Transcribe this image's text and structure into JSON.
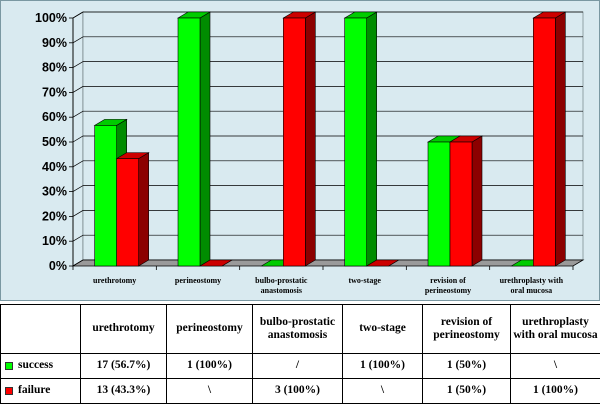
{
  "chart_data": {
    "type": "bar",
    "categories": [
      "urethrotomy",
      "perineostomy",
      "bulbo-prostatic anastomosis",
      "two-stage",
      "revision of perineostomy",
      "urethroplasty with oral mucosa"
    ],
    "category_lines": [
      [
        "urethrotomy"
      ],
      [
        "perineostomy"
      ],
      [
        "bulbo-prostatic",
        "anastomosis"
      ],
      [
        "two-stage"
      ],
      [
        "revision of",
        "perineostomy"
      ],
      [
        "urethroplasty with",
        "oral mucosa"
      ]
    ],
    "series": [
      {
        "name": "success",
        "color": "#00ff00",
        "values": [
          56.7,
          100,
          0,
          100,
          50,
          0
        ]
      },
      {
        "name": "failure",
        "color": "#ff0000",
        "values": [
          43.3,
          0,
          100,
          0,
          50,
          100
        ]
      }
    ],
    "yticks": [
      "0%",
      "10%",
      "20%",
      "30%",
      "40%",
      "50%",
      "60%",
      "70%",
      "80%",
      "90%",
      "100%"
    ],
    "ylim": [
      0,
      100
    ],
    "grid": true,
    "style": "3d-bar"
  },
  "table": {
    "header": [
      "",
      "urethrotomy",
      "perineostomy",
      "bulbo-prostatic anastomosis",
      "two-stage",
      "revision of perineostomy",
      "urethroplasty with oral mucosa"
    ],
    "rows": [
      {
        "label": "success",
        "color": "#00ff00",
        "cells": [
          "17 (56.7%)",
          "1 (100%)",
          "/",
          "1 (100%)",
          "1 (50%)",
          "\\"
        ]
      },
      {
        "label": "failure",
        "color": "#ff0000",
        "cells": [
          "13 (43.3%)",
          "\\",
          "3 (100%)",
          "\\",
          "1 (50%)",
          "1 (100%)"
        ]
      }
    ]
  }
}
